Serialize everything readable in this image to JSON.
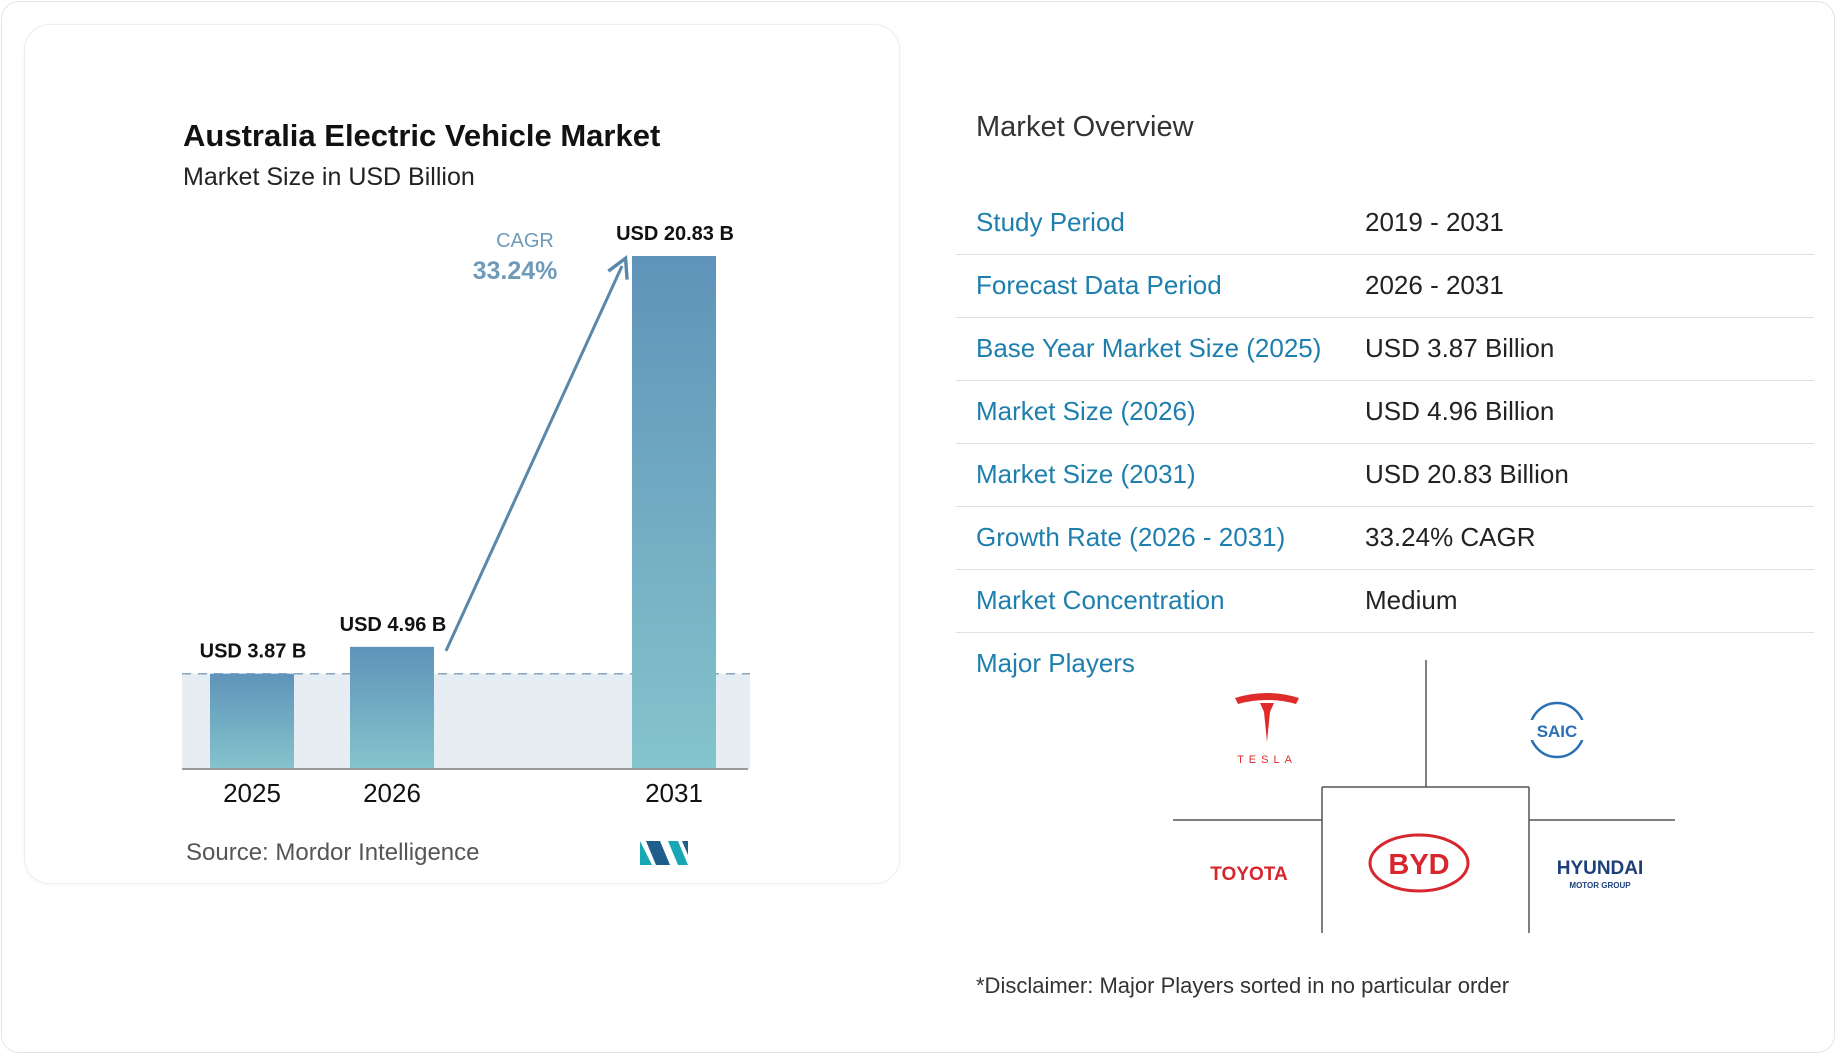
{
  "chart_data": {
    "type": "bar",
    "title": "Australia Electric Vehicle Market",
    "subtitle": "Market Size in USD Billion",
    "categories": [
      "2025",
      "2026",
      "2031"
    ],
    "values": [
      3.87,
      4.96,
      20.83
    ],
    "value_labels": [
      "USD 3.87 B",
      "USD 4.96 B",
      "USD 20.83 B"
    ],
    "cagr_label": "CAGR",
    "cagr_value": "33.24%",
    "ylim": [
      0,
      20.83
    ],
    "grid": false,
    "colors": {
      "bar_top": "#5f93b9",
      "bar_bottom": "#84c4cc",
      "arrow": "#5a88a8",
      "band": "#dde7ef"
    }
  },
  "source": "Source:  Mordor Intelligence",
  "overview": {
    "title": "Market Overview",
    "rows": [
      {
        "label": "Study Period",
        "value": "2019 - 2031"
      },
      {
        "label": "Forecast Data Period",
        "value": "2026 - 2031"
      },
      {
        "label": "Base Year Market Size (2025)",
        "value": "USD 3.87 Billion"
      },
      {
        "label": "Market Size (2026)",
        "value": "USD 4.96 Billion"
      },
      {
        "label": "Market Size (2031)",
        "value": "USD 20.83 Billion"
      },
      {
        "label": "Growth Rate (2026 - 2031)",
        "value": "33.24% CAGR"
      },
      {
        "label": "Market Concentration",
        "value": "Medium"
      }
    ]
  },
  "players": {
    "title": "Major Players",
    "logos": [
      "TESLA",
      "SAIC",
      "TOYOTA",
      "BYD",
      "HYUNDAI",
      "MOTOR GROUP"
    ]
  },
  "disclaimer": "*Disclaimer: Major Players sorted in no particular order",
  "colors": {
    "label_blue": "#1e7fae",
    "row_divider": "#dcdfe3"
  }
}
